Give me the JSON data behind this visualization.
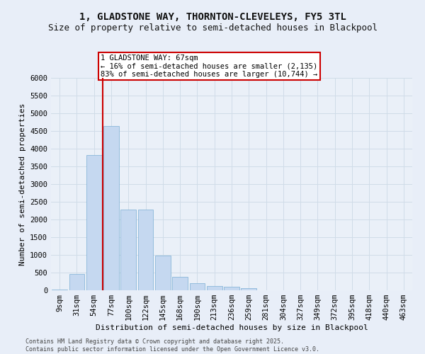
{
  "title_line1": "1, GLADSTONE WAY, THORNTON-CLEVELEYS, FY5 3TL",
  "title_line2": "Size of property relative to semi-detached houses in Blackpool",
  "xlabel": "Distribution of semi-detached houses by size in Blackpool",
  "ylabel": "Number of semi-detached properties",
  "footer": "Contains HM Land Registry data © Crown copyright and database right 2025.\nContains public sector information licensed under the Open Government Licence v3.0.",
  "bar_labels": [
    "9sqm",
    "31sqm",
    "54sqm",
    "77sqm",
    "100sqm",
    "122sqm",
    "145sqm",
    "168sqm",
    "190sqm",
    "213sqm",
    "236sqm",
    "259sqm",
    "281sqm",
    "304sqm",
    "327sqm",
    "349sqm",
    "372sqm",
    "395sqm",
    "418sqm",
    "440sqm",
    "463sqm"
  ],
  "bar_values": [
    30,
    470,
    3820,
    4650,
    2280,
    2280,
    990,
    390,
    200,
    120,
    100,
    60,
    10,
    0,
    0,
    0,
    0,
    0,
    0,
    0,
    0
  ],
  "bar_color": "#c5d8f0",
  "bar_edge_color": "#7bafd4",
  "property_sqm": 67,
  "pct_smaller": 16,
  "pct_larger": 83,
  "n_smaller": 2135,
  "n_larger": 10744,
  "annotation_box_color": "#ffffff",
  "annotation_box_edge": "#cc0000",
  "red_line_color": "#cc0000",
  "ylim": [
    0,
    6000
  ],
  "yticks": [
    0,
    500,
    1000,
    1500,
    2000,
    2500,
    3000,
    3500,
    4000,
    4500,
    5000,
    5500,
    6000
  ],
  "grid_color": "#d0dce8",
  "bg_color": "#e8eef8",
  "plot_bg_color": "#eaf0f8",
  "title_fontsize": 10,
  "subtitle_fontsize": 9,
  "axis_label_fontsize": 8,
  "tick_fontsize": 7.5,
  "annotation_fontsize": 7.5
}
